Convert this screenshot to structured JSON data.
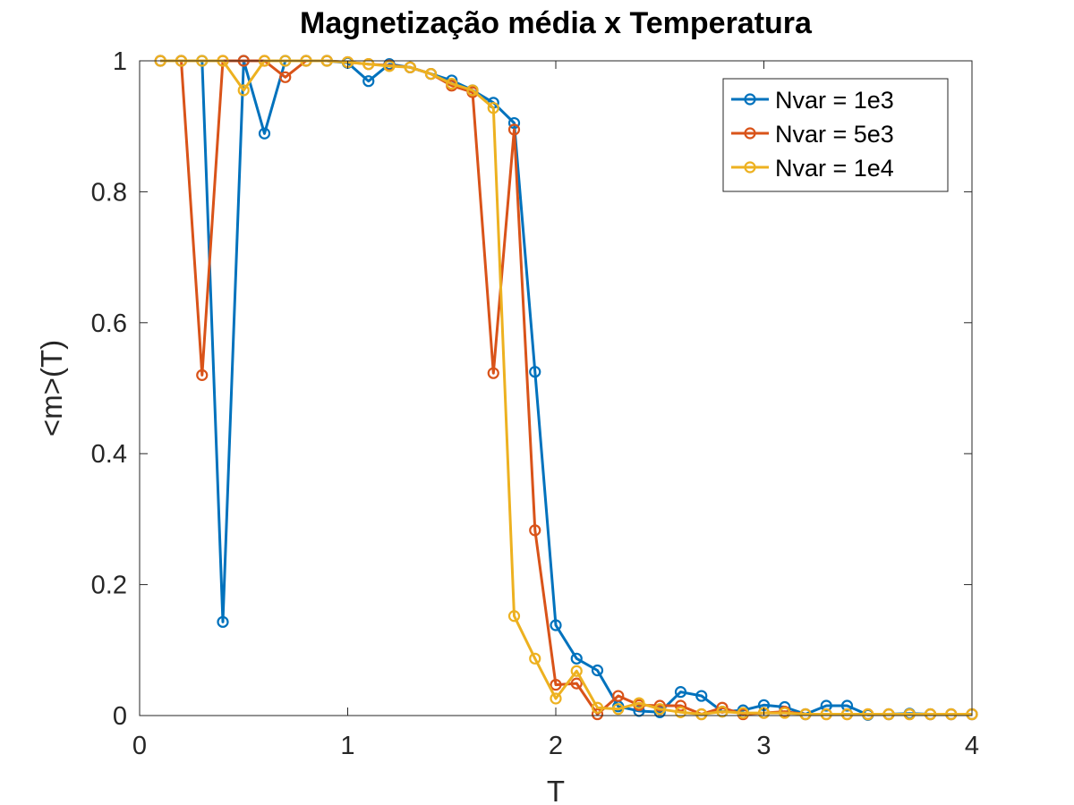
{
  "chart_data": {
    "type": "line",
    "title": "Magnetização média x Temperatura",
    "xlabel": "T",
    "ylabel": "<m>(T)",
    "xlim": [
      0,
      4
    ],
    "ylim": [
      0,
      1
    ],
    "xticks": [
      "0",
      "1",
      "2",
      "3",
      "4"
    ],
    "yticks": [
      "0",
      "0.2",
      "0.4",
      "0.6",
      "0.8",
      "1"
    ],
    "grid": false,
    "legend_position": "top-right",
    "x": [
      0.1,
      0.2,
      0.3,
      0.4,
      0.5,
      0.6,
      0.7,
      0.8,
      0.9,
      1.0,
      1.1,
      1.2,
      1.3,
      1.4,
      1.5,
      1.6,
      1.7,
      1.8,
      1.9,
      2.0,
      2.1,
      2.2,
      2.3,
      2.4,
      2.5,
      2.6,
      2.7,
      2.8,
      2.9,
      3.0,
      3.1,
      3.2,
      3.3,
      3.4,
      3.5,
      3.6,
      3.7,
      3.8,
      3.9,
      4.0
    ],
    "series": [
      {
        "name": "Nvar = 1e3",
        "color": "#0072BD",
        "values": [
          1.0,
          1.0,
          1.0,
          0.143,
          1.0,
          0.889,
          1.0,
          1.0,
          1.0,
          0.997,
          0.969,
          0.995,
          0.99,
          0.98,
          0.97,
          0.955,
          0.936,
          0.905,
          0.525,
          0.138,
          0.087,
          0.069,
          0.014,
          0.007,
          0.005,
          0.036,
          0.03,
          0.006,
          0.008,
          0.016,
          0.013,
          0.002,
          0.015,
          0.015,
          0.001,
          0.002,
          0.003,
          0.002,
          0.002,
          0.002
        ]
      },
      {
        "name": "Nvar = 5e3",
        "color": "#D95319",
        "values": [
          1.0,
          1.0,
          0.52,
          1.0,
          1.0,
          1.0,
          0.975,
          1.0,
          1.0,
          0.998,
          0.995,
          0.993,
          0.99,
          0.98,
          0.962,
          0.952,
          0.523,
          0.895,
          0.283,
          0.047,
          0.049,
          0.002,
          0.03,
          0.016,
          0.015,
          0.015,
          0.002,
          0.012,
          0.002,
          0.004,
          0.006,
          0.002,
          0.002,
          0.002,
          0.002,
          0.002,
          0.002,
          0.002,
          0.002,
          0.002
        ]
      },
      {
        "name": "Nvar = 1e4",
        "color": "#EDB120",
        "values": [
          1.0,
          1.0,
          1.0,
          1.0,
          0.955,
          1.0,
          1.0,
          1.0,
          1.0,
          0.998,
          0.995,
          0.992,
          0.99,
          0.98,
          0.965,
          0.955,
          0.928,
          0.152,
          0.087,
          0.026,
          0.068,
          0.012,
          0.01,
          0.019,
          0.01,
          0.005,
          0.002,
          0.006,
          0.004,
          0.004,
          0.004,
          0.002,
          0.002,
          0.002,
          0.002,
          0.002,
          0.002,
          0.002,
          0.002,
          0.002
        ]
      }
    ]
  }
}
